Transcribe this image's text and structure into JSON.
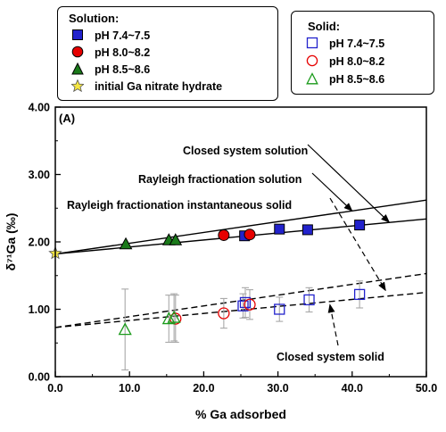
{
  "legend_solution": {
    "title": "Solution:",
    "items": [
      {
        "label": "pH 7.4~7.5",
        "marker": "square",
        "fill": "#2222cc",
        "stroke": "#000000"
      },
      {
        "label": "pH 8.0~8.2",
        "marker": "circle",
        "fill": "#e60000",
        "stroke": "#000000"
      },
      {
        "label": "pH 8.5~8.6",
        "marker": "triangle",
        "fill": "#1a7a1a",
        "stroke": "#000000"
      },
      {
        "label": "initial Ga nitrate hydrate",
        "marker": "star",
        "fill": "#f5e642",
        "stroke": "#555555"
      }
    ]
  },
  "legend_solid": {
    "title": "Solid:",
    "items": [
      {
        "label": "pH 7.4~7.5",
        "marker": "square-open",
        "stroke": "#2222cc"
      },
      {
        "label": "pH 8.0~8.2",
        "marker": "circle-open",
        "stroke": "#e60000"
      },
      {
        "label": "pH 8.5~8.6",
        "marker": "triangle-open",
        "stroke": "#1a9a1a"
      }
    ]
  },
  "chart_data": {
    "type": "scatter",
    "panel_label": "(A)",
    "xlabel": "% Ga adsorbed",
    "ylabel": "δ⁷¹Ga (‰)",
    "xlim": [
      0,
      50
    ],
    "ylim": [
      0,
      4
    ],
    "x_ticks": [
      "0.0",
      "10.0",
      "20.0",
      "30.0",
      "40.0",
      "50.0"
    ],
    "y_ticks": [
      "0.00",
      "1.00",
      "2.00",
      "3.00",
      "4.00"
    ],
    "initial": {
      "x": 0.0,
      "y": 1.83
    },
    "solution_series": [
      {
        "name": "pH 7.4~7.5",
        "points": [
          [
            25.5,
            2.09
          ],
          [
            30.2,
            2.19
          ],
          [
            34.0,
            2.18
          ],
          [
            41.0,
            2.25
          ]
        ]
      },
      {
        "name": "pH 8.0~8.2",
        "points": [
          [
            22.7,
            2.1
          ],
          [
            26.2,
            2.11
          ]
        ]
      },
      {
        "name": "pH 8.5~8.6",
        "points": [
          [
            9.5,
            1.97
          ],
          [
            15.3,
            2.03
          ],
          [
            16.2,
            2.03
          ]
        ]
      }
    ],
    "solid_series": [
      {
        "name": "pH 7.4~7.5",
        "points": [
          [
            25.3,
            1.05,
            0.18
          ],
          [
            25.6,
            1.1,
            0.22
          ],
          [
            30.2,
            1.0,
            0.18
          ],
          [
            34.2,
            1.14,
            0.18
          ],
          [
            41.0,
            1.22,
            0.2
          ]
        ]
      },
      {
        "name": "pH 8.0~8.2",
        "points": [
          [
            22.7,
            0.94,
            0.22
          ],
          [
            26.2,
            1.07,
            0.22
          ],
          [
            16.2,
            0.86,
            0.35
          ]
        ]
      },
      {
        "name": "pH 8.5~8.6",
        "points": [
          [
            9.4,
            0.7,
            0.6
          ],
          [
            15.3,
            0.86,
            0.35
          ],
          [
            16.0,
            0.88,
            0.35
          ]
        ]
      }
    ],
    "models": [
      {
        "name": "Closed system solution",
        "style": "solid",
        "x": [
          0,
          50
        ],
        "y": [
          1.82,
          2.34
        ]
      },
      {
        "name": "Rayleigh fractionation solution",
        "style": "solid",
        "x": [
          0,
          50
        ],
        "y": [
          1.82,
          2.62
        ]
      },
      {
        "name": "Rayleigh fractionation instantaneous solid",
        "style": "dashed",
        "x": [
          0,
          50
        ],
        "y": [
          0.73,
          1.53
        ]
      },
      {
        "name": "Closed system solid",
        "style": "dashed",
        "x": [
          0,
          50
        ],
        "y": [
          0.73,
          1.25
        ]
      }
    ],
    "annotations": [
      {
        "text": "Closed system solution",
        "target": [
          45,
          2.29
        ]
      },
      {
        "text": "Rayleigh fractionation solution",
        "target": [
          40,
          2.46
        ]
      },
      {
        "text": "Rayleigh fractionation instantaneous solid",
        "target": [
          44.5,
          1.28
        ]
      },
      {
        "text": "Closed system solid",
        "target": [
          37,
          1.07
        ]
      }
    ]
  }
}
